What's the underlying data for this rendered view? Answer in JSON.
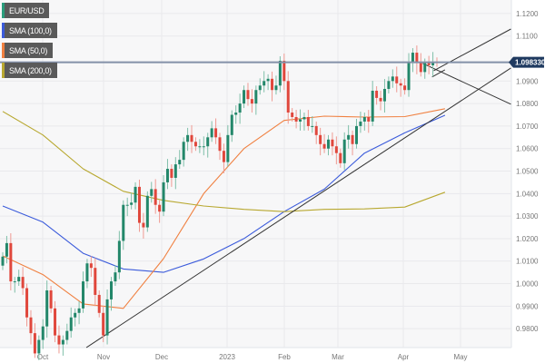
{
  "legend": [
    {
      "label": "EUR/USD",
      "color": "#2a9d7c"
    },
    {
      "label": "SMA (100,0)",
      "color": "#3b5bdb"
    },
    {
      "label": "SMA (50,0)",
      "color": "#f08040"
    },
    {
      "label": "SMA (200,0)",
      "color": "#b8a830"
    }
  ],
  "price_label": "1.098330",
  "chart_data": {
    "type": "candlestick",
    "symbol": "EUR/USD",
    "ylim": [
      0.9716,
      1.126
    ],
    "y_ticks": [
      "1.1200",
      "1.1100",
      "1.0900",
      "1.0800",
      "1.0700",
      "1.0600",
      "1.0500",
      "1.0400",
      "1.0300",
      "1.0200",
      "1.0100",
      "1.0000",
      "0.9900",
      "0.9800"
    ],
    "x_ticks": [
      "Oct",
      "Nov",
      "Dec",
      "2023",
      "Feb",
      "Mar",
      "Apr",
      "May"
    ],
    "grid": true,
    "up_color": "#23876a",
    "down_color": "#e0473c",
    "current_price": 1.09833,
    "closes": [
      1.012,
      1.018,
      1.001,
      1.001,
      1.003,
      0.998,
      0.985,
      0.978,
      0.969,
      0.975,
      0.981,
      0.997,
      0.989,
      0.977,
      0.973,
      0.975,
      0.979,
      0.985,
      0.987,
      0.989,
      1.001,
      1.009,
      1.007,
      0.995,
      0.987,
      0.977,
      0.993,
      1.001,
      1.005,
      1.019,
      1.035,
      1.035,
      1.036,
      1.043,
      1.027,
      1.025,
      1.039,
      1.042,
      1.035,
      1.032,
      1.045,
      1.051,
      1.047,
      1.053,
      1.055,
      1.063,
      1.066,
      1.063,
      1.061,
      1.061,
      1.061,
      1.065,
      1.069,
      1.065,
      1.059,
      1.054,
      1.066,
      1.075,
      1.076,
      1.08,
      1.086,
      1.082,
      1.08,
      1.086,
      1.088,
      1.09,
      1.091,
      1.086,
      1.088,
      1.099,
      1.09,
      1.076,
      1.074,
      1.072,
      1.073,
      1.074,
      1.07,
      1.07,
      1.066,
      1.062,
      1.06,
      1.064,
      1.061,
      1.058,
      1.0535,
      1.064,
      1.066,
      1.062,
      1.07,
      1.072,
      1.074,
      1.072,
      1.0857,
      1.0825,
      1.081,
      1.0865,
      1.09,
      1.092,
      1.089,
      1.088,
      1.086,
      1.098,
      1.1026,
      1.098,
      1.094,
      1.098,
      1.097,
      1.0985,
      1.0983
    ],
    "sma": [
      {
        "name": "SMA (100,0)",
        "color": "#3b5bdb",
        "values": [
          1.0345,
          1.0273,
          1.0135,
          1.0065,
          1.005,
          1.011,
          1.02,
          1.032,
          1.042,
          1.058,
          1.067,
          1.0748
        ]
      },
      {
        "name": "SMA (50,0)",
        "color": "#f08040",
        "values": [
          1.0123,
          1.004,
          0.991,
          0.989,
          1.0111,
          1.04,
          1.06,
          1.0725,
          1.0744,
          1.074,
          1.0742,
          1.0777
        ]
      },
      {
        "name": "SMA (200,0)",
        "color": "#b8a830",
        "values": [
          1.0765,
          1.066,
          1.051,
          1.041,
          1.037,
          1.0345,
          1.033,
          1.032,
          1.033,
          1.0332,
          1.034,
          1.0406
        ]
      }
    ],
    "trendlines": [
      {
        "from": [
          20.8,
          0.9716
        ],
        "to": [
          126.4,
          1.0958
        ]
      },
      {
        "from": [
          107.2,
          1.0946
        ],
        "to": [
          126.4,
          1.1131
        ]
      },
      {
        "from": [
          104.5,
          1.0978
        ],
        "to": [
          126.4,
          1.0797
        ]
      },
      {
        "from": [
          106.8,
          1.0918
        ],
        "to": [
          110,
          1.095
        ]
      }
    ]
  }
}
